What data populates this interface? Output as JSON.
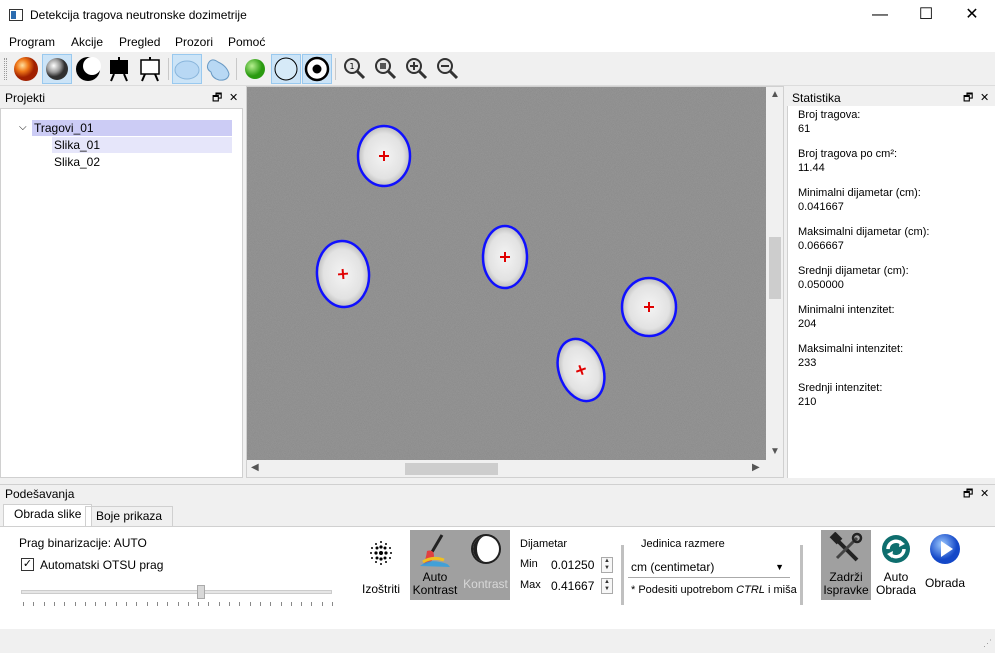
{
  "window": {
    "title": "Detekcija tragova neutronske dozimetrije",
    "minimize": "—",
    "maximize": "☐",
    "close": "✕"
  },
  "menu": [
    "Program",
    "Akcije",
    "Pregled",
    "Prozori",
    "Pomoć"
  ],
  "toolbar": {
    "icons": [
      "orange-sphere-icon",
      "gray-sphere-icon",
      "moon-icon",
      "black-board-icon",
      "white-board-icon",
      "oval-shape-icon",
      "blob-shape-icon",
      "green-dot-icon",
      "circle-outline-icon",
      "target-icon",
      "zoom-fit-icon",
      "zoom-actual-icon",
      "zoom-in-icon",
      "zoom-out-icon"
    ]
  },
  "projects_panel": {
    "title": "Projekti",
    "tree": {
      "root": "Tragovi_01",
      "children": [
        "Slika_01",
        "Slika_02"
      ]
    }
  },
  "stats_panel": {
    "title": "Statistika",
    "items": [
      {
        "label": "Broj tragova:",
        "value": "61"
      },
      {
        "label": "Broj tragova po cm²:",
        "value": "11.44"
      },
      {
        "label": "Minimalni dijametar (cm):",
        "value": "0.041667"
      },
      {
        "label": "Maksimalni dijametar (cm):",
        "value": "0.066667"
      },
      {
        "label": "Srednji dijametar (cm):",
        "value": "0.050000"
      },
      {
        "label": "Minimalni intenzitet:",
        "value": "204"
      },
      {
        "label": "Maksimalni intenzitet:",
        "value": "233"
      },
      {
        "label": "Srednji intenzitet:",
        "value": "210"
      }
    ]
  },
  "settings_panel": {
    "title": "Podešavanja",
    "tabs": [
      "Obrada slike",
      "Boje prikaza"
    ],
    "threshold_label": "Prag binarizacije: AUTO",
    "otsu_label": "Automatski OTSU prag",
    "otsu_checked": "✓",
    "threshold_level": 0.58,
    "sharpen_label": "Izoštriti",
    "auto_contrast_label": [
      "Auto",
      "Kontrast"
    ],
    "contrast_label": "Kontrast",
    "diameter": {
      "title": "Dijametar",
      "min_label": "Min",
      "min_value": "0.01250",
      "max_label": "Max",
      "max_value": "0.41667"
    },
    "unit": {
      "title": "Jedinica razmere",
      "value": "cm (centimetar)",
      "hint_prefix": "* Podesiti upotrebom ",
      "hint_key": "CTRL",
      "hint_suffix": " i miša"
    },
    "keep_edits_label": [
      "Zadrži",
      "Ispravke"
    ],
    "auto_process_label": [
      "Auto",
      "Obrada"
    ],
    "process_label": "Obrada"
  }
}
